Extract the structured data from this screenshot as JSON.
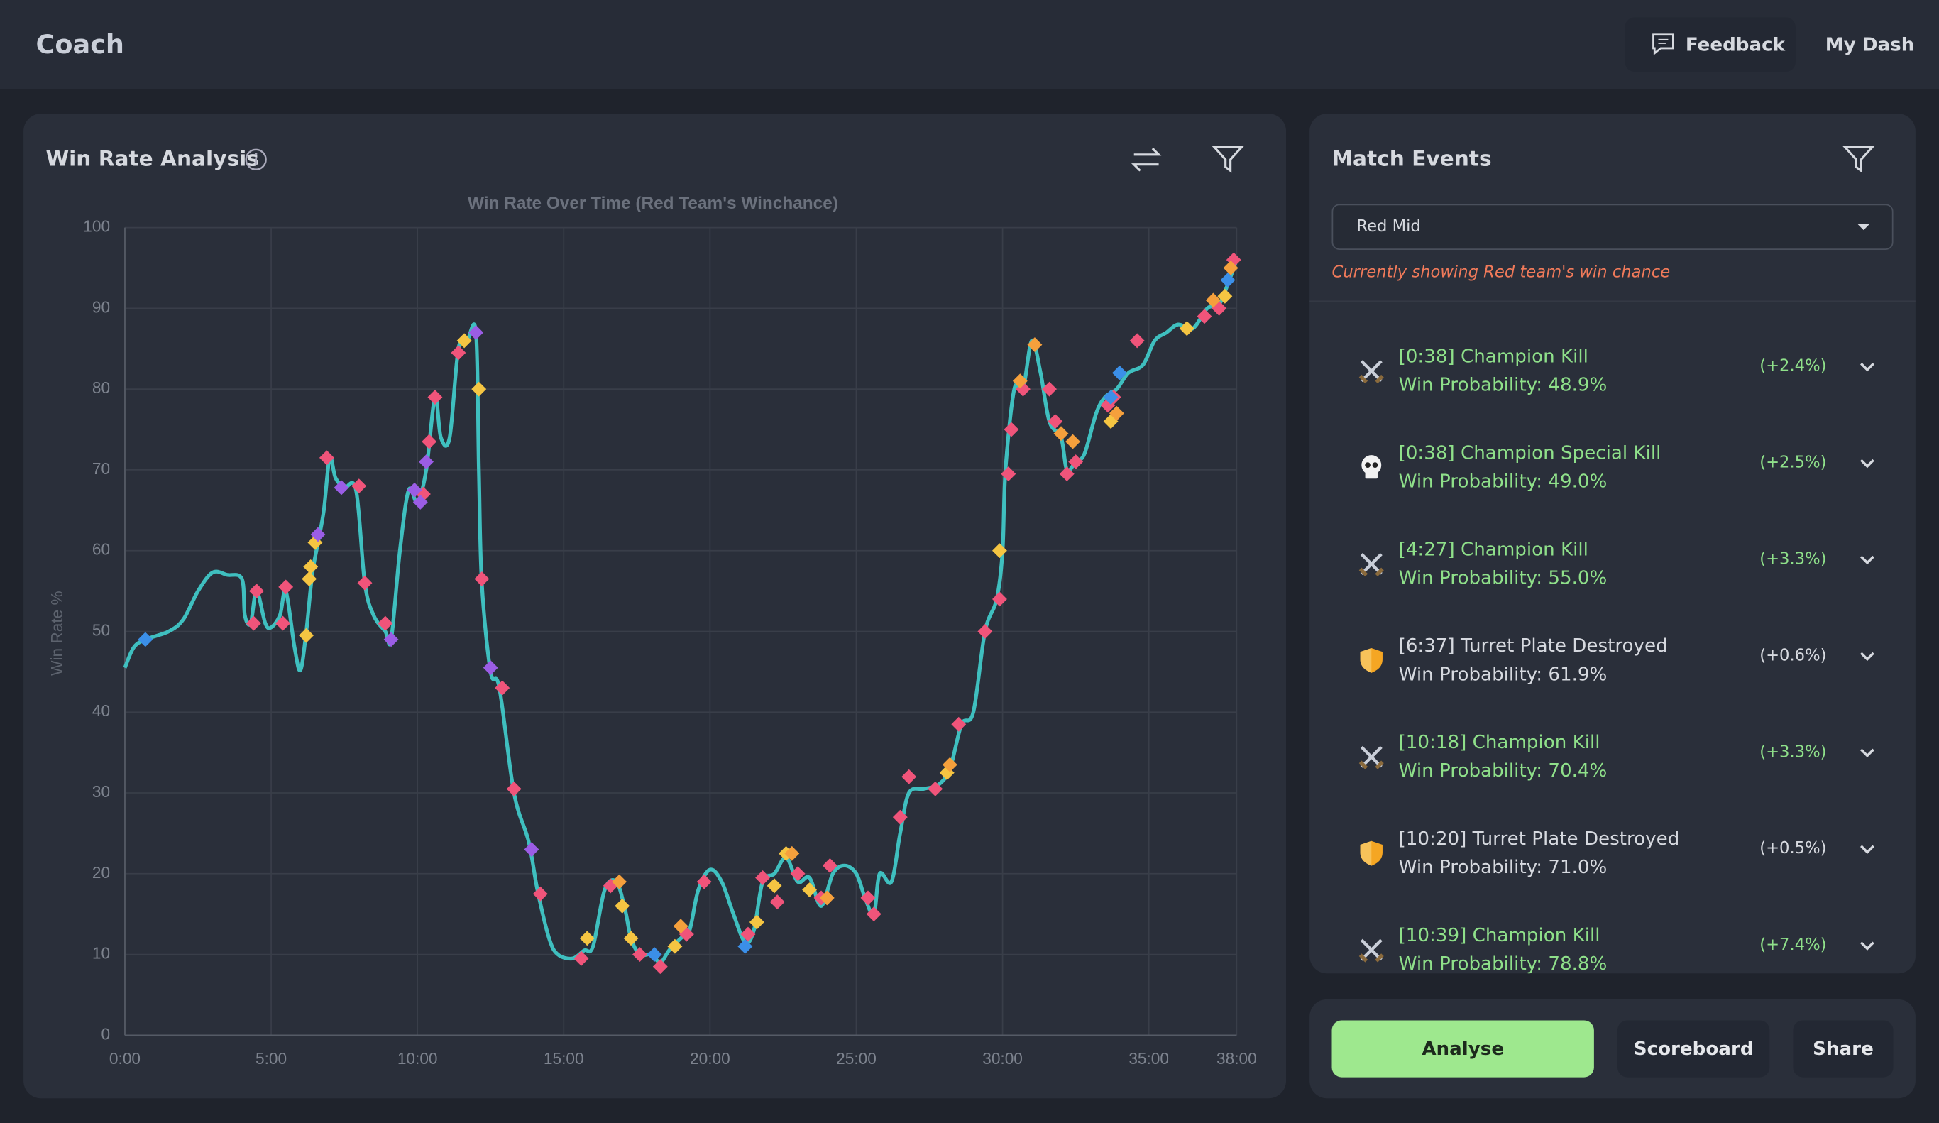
{
  "header": {
    "title": "Coach",
    "feedback": "Feedback",
    "dash": "My Dash"
  },
  "panel": {
    "title": "Win Rate Analysis"
  },
  "chart_data": {
    "type": "line",
    "title": "Win Rate Over Time (Red Team's Winchance)",
    "y_label": "Win Rate %",
    "xlim": [
      0,
      38
    ],
    "ylim": [
      0,
      100
    ],
    "xticks": [
      {
        "value": 0,
        "label": "0:00"
      },
      {
        "value": 5,
        "label": "5:00"
      },
      {
        "value": 10,
        "label": "10:00"
      },
      {
        "value": 15,
        "label": "15:00"
      },
      {
        "value": 20,
        "label": "20:00"
      },
      {
        "value": 25,
        "label": "25:00"
      },
      {
        "value": 30,
        "label": "30:00"
      },
      {
        "value": 35,
        "label": "35:00"
      },
      {
        "value": 38,
        "label": "38:00"
      }
    ],
    "yticks": [
      0,
      10,
      20,
      30,
      40,
      50,
      60,
      70,
      80,
      90,
      100
    ],
    "grid": true,
    "series": [
      {
        "color": "#3fbfbf",
        "x": [
          0,
          0.3,
          0.7,
          1.5,
          2,
          2.5,
          3,
          3.5,
          4,
          4.1,
          4.3,
          4.5,
          4.8,
          5,
          5.3,
          5.5,
          5.8,
          6,
          6.2,
          6.4,
          6.6,
          6.8,
          7,
          7.2,
          7.5,
          7.9,
          8.2,
          8.5,
          8.9,
          9.1,
          9.4,
          9.7,
          10,
          10.3,
          10.6,
          10.8,
          11.1,
          11.4,
          11.7,
          12,
          12.1,
          12.2,
          12.5,
          12.8,
          13.3,
          13.8,
          14.1,
          14.5,
          14.8,
          15.3,
          15.7,
          16,
          16.4,
          16.8,
          17.1,
          17.3,
          17.6,
          18,
          18.3,
          18.6,
          19,
          19.3,
          19.6,
          20,
          20.4,
          20.8,
          21.2,
          21.5,
          21.8,
          22.2,
          22.6,
          23,
          23.4,
          23.8,
          24.2,
          24.6,
          25,
          25.3,
          25.6,
          25.8,
          26.2,
          26.5,
          26.8,
          27.3,
          27.8,
          28.2,
          28.6,
          29,
          29.4,
          29.8,
          30,
          30.1,
          30.4,
          30.7,
          31,
          31.3,
          31.6,
          32,
          32.2,
          32.5,
          32.8,
          33.2,
          33.5,
          33.9,
          34.3,
          34.8,
          35.2,
          35.6,
          36,
          36.5,
          37,
          37.4,
          37.7,
          38
        ],
        "values": [
          45.5,
          48,
          49,
          50,
          51.5,
          55,
          57.3,
          57,
          56.5,
          52,
          51,
          55,
          51,
          50.5,
          52,
          55,
          48,
          45.2,
          50,
          57,
          61,
          65,
          71.5,
          69,
          67.8,
          67.5,
          56,
          52,
          50,
          49,
          60,
          67.5,
          66,
          70,
          79,
          74,
          74,
          85,
          86,
          87,
          70,
          56,
          45,
          43,
          30,
          24,
          18,
          12,
          10,
          9.5,
          10.5,
          11,
          18,
          19,
          15.5,
          12,
          10,
          10,
          9,
          10.5,
          12,
          13,
          18,
          20.5,
          19,
          15,
          11.5,
          13,
          19,
          20,
          22,
          19,
          19.5,
          16,
          20,
          21,
          20,
          17,
          15,
          20,
          19,
          25,
          30,
          30.5,
          31,
          33,
          38.5,
          40,
          50,
          54,
          60,
          70,
          80,
          80,
          86,
          82,
          76,
          74,
          70,
          71,
          72,
          77,
          79,
          80,
          82,
          83,
          86,
          87,
          88,
          87.5,
          90,
          90.5,
          93,
          96
        ]
      }
    ],
    "markers": [
      {
        "color": "#f0547a",
        "x": [
          4.4,
          4.5,
          5.4,
          5.5,
          6.9,
          8,
          8.2,
          8.9,
          10.2,
          10.4,
          10.6,
          11.4,
          12.2,
          12.9,
          13.3,
          14.2,
          15.6,
          16.6,
          17.6,
          18.3,
          19.2,
          19.8,
          21.3,
          21.8,
          22.3,
          23,
          23.8,
          24.1,
          25.4,
          25.6,
          26.5,
          26.8,
          27.7,
          28.5,
          29.4,
          29.9,
          30.2,
          30.3,
          30.7,
          31.6,
          31.8,
          32.2,
          32.5,
          33.6,
          33.8,
          34.6,
          36.9,
          37.4,
          37.9
        ],
        "values": [
          51,
          55,
          51,
          55.5,
          71.5,
          68,
          56,
          51,
          67,
          73.5,
          79,
          84.5,
          56.5,
          43,
          30.5,
          17.5,
          9.5,
          18.5,
          10,
          8.5,
          12.5,
          19,
          12.5,
          19.5,
          16.5,
          20,
          17,
          21,
          17,
          15,
          27,
          32,
          30.5,
          38.5,
          50,
          54,
          69.5,
          75,
          80,
          80,
          76,
          69.5,
          71,
          78,
          79,
          86,
          89,
          90,
          96
        ]
      },
      {
        "color": "#f5c542",
        "x": [
          6.2,
          6.3,
          6.35,
          6.5,
          11.6,
          12.1,
          15.8,
          17,
          17.3,
          18.8,
          21.6,
          22.2,
          22.6,
          23.4,
          28.1,
          29.9,
          33.7,
          36.3,
          37.6
        ],
        "values": [
          49.5,
          56.5,
          58,
          61,
          86,
          80,
          12,
          16,
          12,
          11,
          14,
          18.5,
          22.5,
          18,
          32.5,
          60,
          76,
          87.5,
          91.5
        ]
      },
      {
        "color": "#f5a03c",
        "x": [
          16.9,
          19,
          22.8,
          24,
          28.2,
          30.6,
          31.1,
          32,
          32.4,
          33.9,
          37.2,
          37.8
        ],
        "values": [
          19,
          13.5,
          22.5,
          17,
          33.5,
          81,
          85.5,
          74.5,
          73.5,
          77,
          91,
          95
        ]
      },
      {
        "color": "#3b8fe8",
        "x": [
          0.7,
          18.1,
          21.2,
          33.7,
          34,
          37.7
        ],
        "values": [
          49,
          10,
          11,
          79,
          82,
          93.5
        ]
      },
      {
        "color": "#9b5de5",
        "x": [
          6.6,
          7.4,
          9.1,
          9.9,
          10.1,
          10.3,
          12,
          12.5,
          13.9
        ],
        "values": [
          62,
          67.8,
          49,
          67.5,
          66,
          71,
          87,
          45.5,
          23
        ]
      }
    ]
  },
  "events": {
    "title": "Match Events",
    "select": "Red Mid",
    "note": "Currently showing Red team's win chance",
    "items": [
      {
        "icon": "swords",
        "title": "[0:38] Champion Kill",
        "prob": "Win Probability: 48.9%",
        "delta": "(+2.4%)",
        "color": "#8fe08a"
      },
      {
        "icon": "skull",
        "title": "[0:38] Champion Special Kill",
        "prob": "Win Probability: 49.0%",
        "delta": "(+2.5%)",
        "color": "#8fe08a"
      },
      {
        "icon": "swords",
        "title": "[4:27] Champion Kill",
        "prob": "Win Probability: 55.0%",
        "delta": "(+3.3%)",
        "color": "#8fe08a"
      },
      {
        "icon": "shield",
        "title": "[6:37] Turret Plate Destroyed",
        "prob": "Win Probability: 61.9%",
        "delta": "(+0.6%)",
        "color": "#d6d9df"
      },
      {
        "icon": "swords",
        "title": "[10:18] Champion Kill",
        "prob": "Win Probability: 70.4%",
        "delta": "(+3.3%)",
        "color": "#8fe08a"
      },
      {
        "icon": "shield",
        "title": "[10:20] Turret Plate Destroyed",
        "prob": "Win Probability: 71.0%",
        "delta": "(+0.5%)",
        "color": "#d6d9df"
      },
      {
        "icon": "swords",
        "title": "[10:39] Champion Kill",
        "prob": "Win Probability: 78.8%",
        "delta": "(+7.4%)",
        "color": "#8fe08a"
      }
    ]
  },
  "actions": {
    "analyse": "Analyse",
    "scoreboard": "Scoreboard",
    "share": "Share"
  }
}
